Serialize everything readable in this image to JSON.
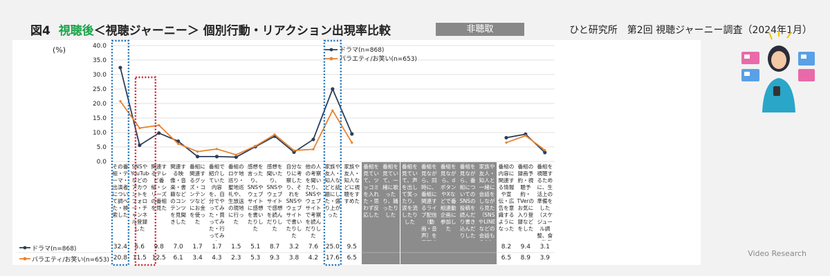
{
  "header": {
    "fig": "図4",
    "green": "視聴後",
    "rest": "＜視聴ジャーニー＞ 個別行動・リアクション出現率比較",
    "badge": "非聴取",
    "source": "ひと研究所　第2回 視聴ジャーニー調査（2024年1月）",
    "unit": "(%)",
    "brand": "Video Research"
  },
  "colors": {
    "drama": "#2d3e5a",
    "variety": "#e8822e",
    "blue_box": "#1a6fb5",
    "red_box": "#cc2233",
    "gray": "#8c8c8c"
  },
  "chart_data": {
    "type": "line",
    "ylim": [
      0,
      40
    ],
    "yticks": [
      "0.0",
      "5.0",
      "10.0",
      "15.0",
      "20.0",
      "25.0",
      "30.0",
      "35.0",
      "40.0"
    ],
    "categories": [
      "その番組・テーマ・出演者について調べた・検索した",
      "SNSやYouTubeなどのアカウントをフォロー・チャンネル登録した",
      "関連するテレビ番組・シリーズの番組を見た",
      "関連する映像・音楽・書籍などのコンテンツを見聞きした",
      "番組に関連するグッズ・コンテンツなどにお金を使った",
      "番組で紹介していた内容を、自分でやってみた・買ってみた・行ってみた",
      "番組のロケ地巡り・聖地巡礼や、生放送の現地に行った",
      "感想を言ったり、SNSやウェブサイトに感想を書いたりした",
      "感想を聞いたり、SNSやウェブサイトで感想を読んだりした",
      "自分なりに考察したり、それをSNSやウェブサイトで書いたりした",
      "他の人の考察を聞いたり、SNSやウェブサイトで考察を読んだりした",
      "家族や友人・知人などと話題にした・盛り上がった",
      "家族や友人・知人などに視聴をすすめた",
      "番組を見ていて、ツッコミを入れた・思わず反応した",
      "番組を見ていて、一緒に歌ったり、踊ったりした",
      "番組を見ていて、声を出して笑ったり、涙を流したりした",
      "番組を見ながら、同時に、番組に関連するライブ配信（動画・音声）を見聞きした",
      "番組を見ながら、dボタンやXなどで番組連動企画に参加した",
      "番組を見ながら、番組についてのSNSの投稿を読んだり書き込んだりした",
      "家族や友人・知人と一緒に会話をしながら見た（SNSやLINEなどの会話も含む）",
      "番組の内容に関連する情報や宣伝・広告を意識するようになった",
      "番組の録画予約・視聴予約・TVerのお気に入り登録などをした",
      "番組を視聴するために、生活上の準備をした（スケジュール調整、食べ物飲み物の準備など）"
    ],
    "gray_columns": [
      13,
      14,
      15,
      16,
      17,
      18,
      19
    ],
    "series": [
      {
        "name": "ドラマ(n=868)",
        "values": [
          32.4,
          5.6,
          9.8,
          7.0,
          1.7,
          1.7,
          1.5,
          5.1,
          8.7,
          3.2,
          7.6,
          25.0,
          9.5,
          null,
          null,
          null,
          null,
          null,
          null,
          null,
          8.2,
          9.4,
          3.1
        ],
        "labels": [
          "32.4",
          "5.6",
          "9.8",
          "7.0",
          "1.7",
          "1.7",
          "1.5",
          "5.1",
          "8.7",
          "3.2",
          "7.6",
          "25.0",
          "9.5",
          "",
          "",
          "",
          "",
          "",
          "",
          "",
          "8.2",
          "9.4",
          "3.1"
        ]
      },
      {
        "name": "バラエティ/お笑い(n=653)",
        "values": [
          20.8,
          11.5,
          12.5,
          6.1,
          3.4,
          4.3,
          2.3,
          5.3,
          9.3,
          3.8,
          4.2,
          17.6,
          6.5,
          null,
          null,
          null,
          null,
          null,
          null,
          null,
          6.5,
          8.9,
          3.9
        ],
        "labels": [
          "20.8",
          "11.5",
          "12.5",
          "6.1",
          "3.4",
          "4.3",
          "2.3",
          "5.3",
          "9.3",
          "3.8",
          "4.2",
          "17.6",
          "6.5",
          "",
          "",
          "",
          "",
          "",
          "",
          "",
          "6.5",
          "8.9",
          "3.9"
        ]
      }
    ],
    "highlight_blue": [
      0,
      11
    ],
    "highlight_red": [
      1
    ]
  }
}
